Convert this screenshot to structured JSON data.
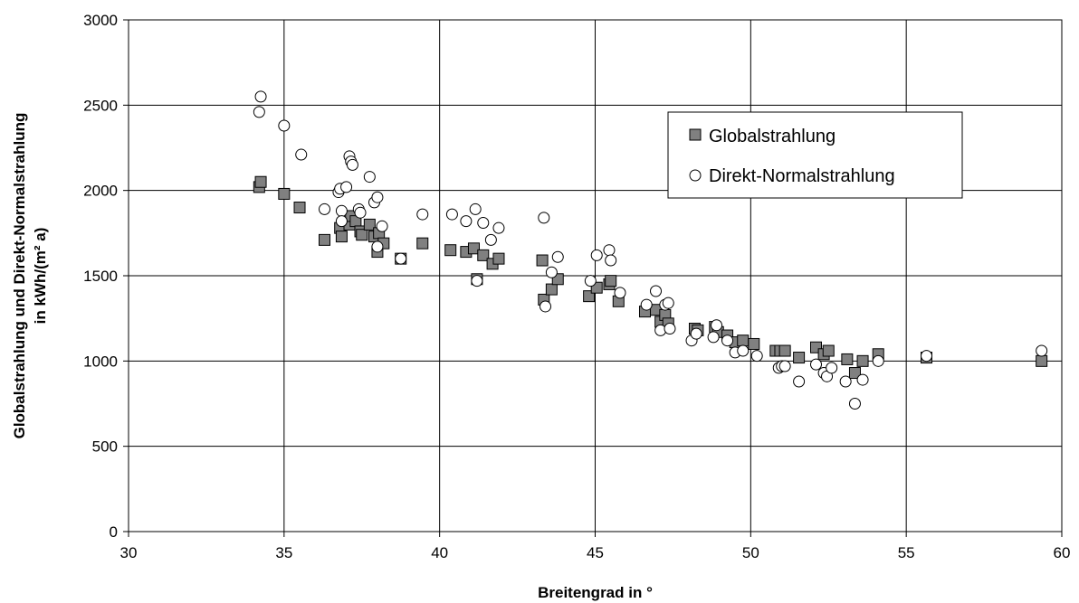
{
  "chart_data": {
    "type": "scatter",
    "xlabel": "Breitengrad in °",
    "ylabel_line1": "Globalstrahlung und Direkt-Normalstrahlung",
    "ylabel_line2": "in kWh/(m² a)",
    "xlim": [
      30,
      60
    ],
    "ylim": [
      0,
      3000
    ],
    "xticks": [
      30,
      35,
      40,
      45,
      50,
      55,
      60
    ],
    "yticks": [
      0,
      500,
      1000,
      1500,
      2000,
      2500,
      3000
    ],
    "grid": true,
    "legend_position": "top-right",
    "series": [
      {
        "name": "Globalstrahlung",
        "marker": "square",
        "color": "#808080",
        "points": [
          [
            34.2,
            2020
          ],
          [
            34.25,
            2050
          ],
          [
            35.0,
            1980
          ],
          [
            35.5,
            1900
          ],
          [
            36.3,
            1710
          ],
          [
            36.8,
            1780
          ],
          [
            36.85,
            1730
          ],
          [
            37.1,
            1800
          ],
          [
            37.15,
            1850
          ],
          [
            37.3,
            1820
          ],
          [
            37.45,
            1760
          ],
          [
            37.5,
            1740
          ],
          [
            37.75,
            1800
          ],
          [
            37.9,
            1730
          ],
          [
            38.0,
            1640
          ],
          [
            38.05,
            1750
          ],
          [
            38.2,
            1690
          ],
          [
            38.75,
            1600
          ],
          [
            39.45,
            1690
          ],
          [
            40.35,
            1650
          ],
          [
            40.85,
            1640
          ],
          [
            41.1,
            1660
          ],
          [
            41.2,
            1480
          ],
          [
            41.4,
            1620
          ],
          [
            41.7,
            1570
          ],
          [
            41.9,
            1600
          ],
          [
            43.3,
            1590
          ],
          [
            43.35,
            1360
          ],
          [
            43.6,
            1420
          ],
          [
            43.8,
            1480
          ],
          [
            44.8,
            1380
          ],
          [
            45.05,
            1430
          ],
          [
            45.45,
            1450
          ],
          [
            45.5,
            1470
          ],
          [
            45.75,
            1350
          ],
          [
            46.6,
            1290
          ],
          [
            46.95,
            1300
          ],
          [
            47.1,
            1230
          ],
          [
            47.25,
            1270
          ],
          [
            47.35,
            1220
          ],
          [
            48.2,
            1190
          ],
          [
            48.3,
            1180
          ],
          [
            48.85,
            1200
          ],
          [
            48.95,
            1170
          ],
          [
            49.25,
            1150
          ],
          [
            49.5,
            1110
          ],
          [
            49.75,
            1120
          ],
          [
            50.1,
            1100
          ],
          [
            50.8,
            1060
          ],
          [
            50.95,
            1060
          ],
          [
            51.1,
            1060
          ],
          [
            51.55,
            1020
          ],
          [
            52.1,
            1080
          ],
          [
            52.35,
            1040
          ],
          [
            52.5,
            1060
          ],
          [
            53.1,
            1010
          ],
          [
            53.35,
            930
          ],
          [
            53.6,
            1000
          ],
          [
            54.1,
            1040
          ],
          [
            55.65,
            1020
          ],
          [
            59.35,
            1000
          ]
        ]
      },
      {
        "name": "Direkt-Normalstrahlung",
        "marker": "circle",
        "color": "#ffffff",
        "points": [
          [
            34.25,
            2550
          ],
          [
            34.2,
            2460
          ],
          [
            35.0,
            2380
          ],
          [
            35.55,
            2210
          ],
          [
            36.3,
            1890
          ],
          [
            36.75,
            1990
          ],
          [
            36.8,
            2010
          ],
          [
            36.85,
            1880
          ],
          [
            36.85,
            1820
          ],
          [
            37.0,
            2020
          ],
          [
            37.1,
            2200
          ],
          [
            37.15,
            2170
          ],
          [
            37.2,
            2150
          ],
          [
            37.4,
            1890
          ],
          [
            37.45,
            1870
          ],
          [
            37.75,
            2080
          ],
          [
            37.9,
            1930
          ],
          [
            38.0,
            1960
          ],
          [
            38.0,
            1670
          ],
          [
            38.15,
            1790
          ],
          [
            38.75,
            1600
          ],
          [
            39.45,
            1860
          ],
          [
            40.4,
            1860
          ],
          [
            40.85,
            1820
          ],
          [
            41.15,
            1890
          ],
          [
            41.2,
            1470
          ],
          [
            41.4,
            1810
          ],
          [
            41.65,
            1710
          ],
          [
            41.9,
            1780
          ],
          [
            43.35,
            1840
          ],
          [
            43.4,
            1320
          ],
          [
            43.6,
            1520
          ],
          [
            43.8,
            1610
          ],
          [
            44.85,
            1470
          ],
          [
            45.05,
            1620
          ],
          [
            45.45,
            1650
          ],
          [
            45.5,
            1590
          ],
          [
            45.8,
            1400
          ],
          [
            46.65,
            1330
          ],
          [
            46.95,
            1410
          ],
          [
            47.1,
            1180
          ],
          [
            47.25,
            1330
          ],
          [
            47.35,
            1340
          ],
          [
            47.4,
            1190
          ],
          [
            48.1,
            1120
          ],
          [
            48.25,
            1160
          ],
          [
            48.8,
            1140
          ],
          [
            48.9,
            1210
          ],
          [
            49.25,
            1120
          ],
          [
            49.5,
            1050
          ],
          [
            49.75,
            1060
          ],
          [
            50.2,
            1030
          ],
          [
            50.9,
            960
          ],
          [
            51.0,
            970
          ],
          [
            51.1,
            970
          ],
          [
            51.55,
            880
          ],
          [
            52.1,
            980
          ],
          [
            52.35,
            930
          ],
          [
            52.45,
            910
          ],
          [
            52.6,
            960
          ],
          [
            53.05,
            880
          ],
          [
            53.35,
            750
          ],
          [
            53.6,
            890
          ],
          [
            54.1,
            1000
          ],
          [
            55.65,
            1030
          ],
          [
            59.35,
            1060
          ]
        ]
      }
    ]
  }
}
